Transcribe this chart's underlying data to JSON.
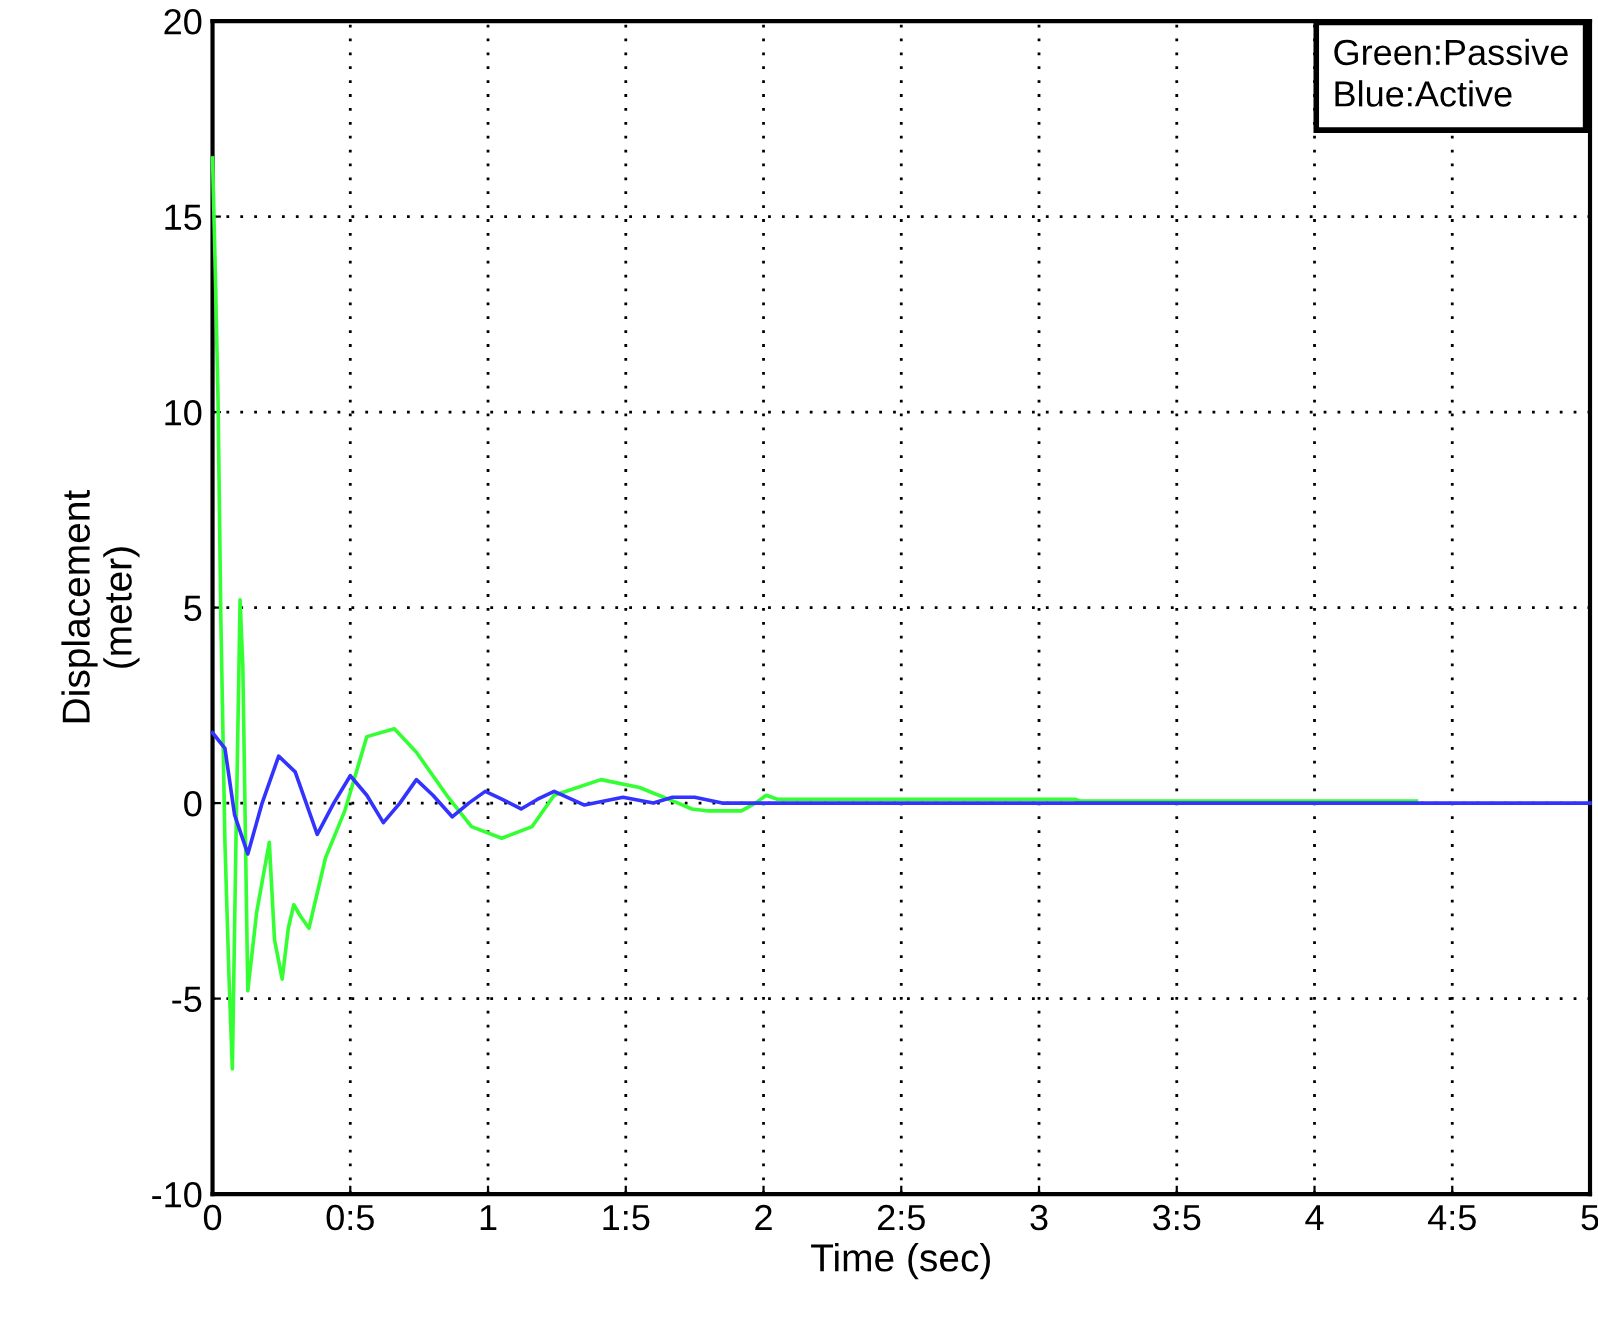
{
  "chart_data": {
    "type": "line",
    "xlabel": "Time (sec)",
    "ylabel": "Displacement\n(meter)",
    "annotations": [
      "Green:Passive\nBlue:Active"
    ],
    "xlim": [
      0,
      5
    ],
    "ylim": [
      -10,
      20
    ],
    "xticks": [
      0,
      {
        "value": 0.5,
        "label": "0:5"
      },
      1,
      {
        "value": 1.5,
        "label": "1:5"
      },
      2,
      {
        "value": 2.5,
        "label": "2:5"
      },
      3,
      {
        "value": 3.5,
        "label": "3:5"
      },
      4,
      {
        "value": 4.5,
        "label": "4:5"
      },
      5
    ],
    "yticks": [
      -10,
      -5,
      0,
      5,
      10,
      15,
      20
    ],
    "grid": true,
    "line_style": "solid",
    "marker": "none",
    "series": [
      {
        "color": "#33ff33",
        "x": [
          0,
          0.01,
          0.02,
          0.03,
          0.045,
          0.06,
          0.072,
          0.085,
          0.1,
          0.11,
          0.128,
          0.16,
          0.206,
          0.225,
          0.253,
          0.275,
          0.295,
          0.32,
          0.35,
          0.41,
          0.48,
          0.56,
          0.66,
          0.74,
          0.85,
          0.94,
          1.05,
          1.16,
          1.24,
          1.41,
          1.55,
          1.69,
          1.74,
          1.8,
          1.92,
          1.97,
          2.01,
          2.05,
          3.13,
          3.15,
          4.37
        ],
        "values": [
          16.5,
          13.6,
          10.3,
          4.8,
          -1,
          -4.5,
          -6.8,
          -1,
          5.2,
          3.5,
          -4.8,
          -2.8,
          -1,
          -3.5,
          -4.5,
          -3.2,
          -2.6,
          -2.9,
          -3.2,
          -1.4,
          -0.2,
          1.7,
          1.9,
          1.3,
          0.2,
          -0.6,
          -0.9,
          -0.6,
          0.2,
          0.6,
          0.4,
          0,
          -0.15,
          -0.2,
          -0.2,
          0,
          0.2,
          0.1,
          0.1,
          0.05,
          0.05
        ]
      },
      {
        "color": "#3333ff",
        "x": [
          0,
          0.045,
          0.08,
          0.128,
          0.18,
          0.24,
          0.3,
          0.38,
          0.44,
          0.5,
          0.56,
          0.62,
          0.68,
          0.74,
          0.8,
          0.87,
          0.93,
          0.99,
          1.05,
          1.12,
          1.18,
          1.24,
          1.35,
          1.49,
          1.6,
          1.67,
          1.75,
          1.85,
          2.0,
          5
        ],
        "values": [
          1.8,
          1.4,
          -0.3,
          -1.3,
          0,
          1.2,
          0.8,
          -0.8,
          0,
          0.7,
          0.2,
          -0.5,
          0,
          0.6,
          0.2,
          -0.35,
          0,
          0.3,
          0.1,
          -0.15,
          0.1,
          0.3,
          -0.05,
          0.15,
          0,
          0.15,
          0.15,
          0,
          0,
          0
        ]
      }
    ]
  }
}
